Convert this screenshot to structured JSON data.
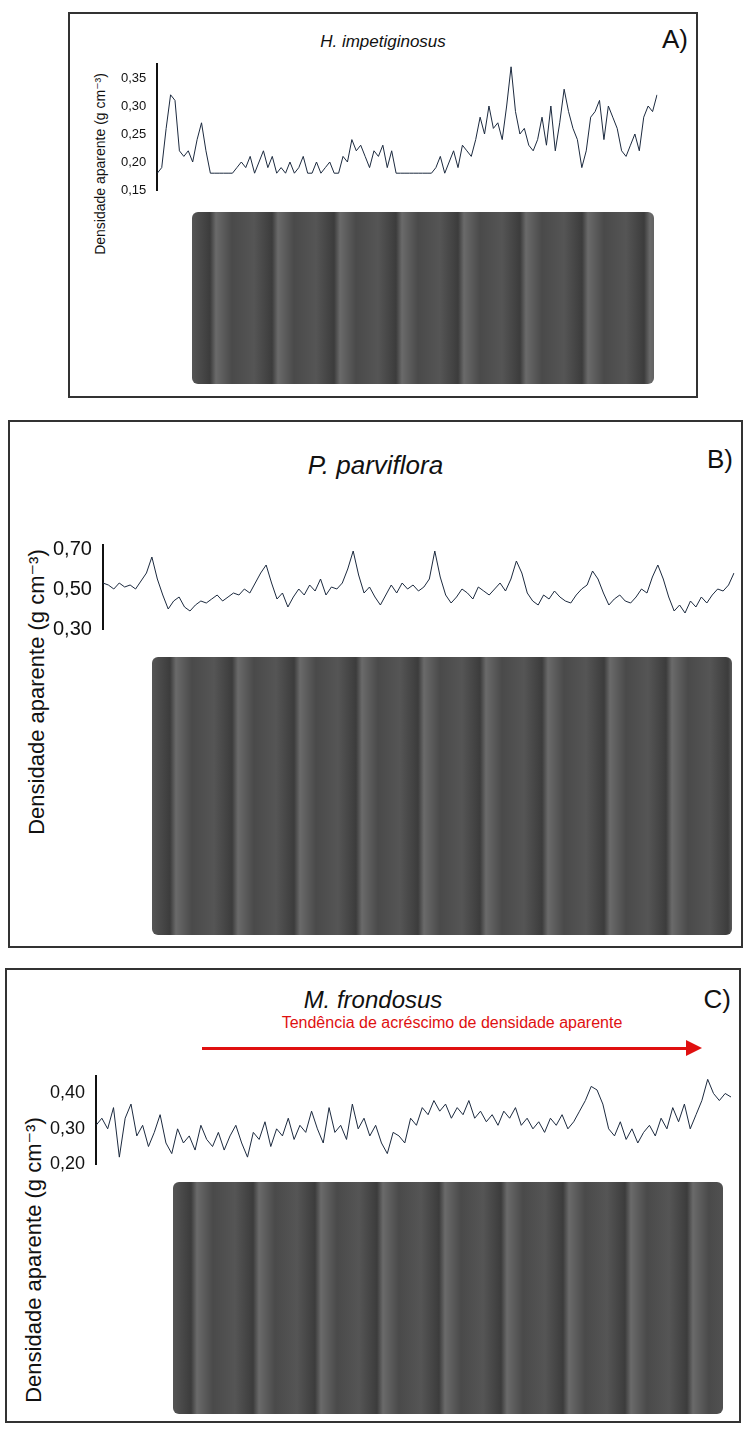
{
  "chart_data": [
    {
      "type": "line",
      "panel_label": "A)",
      "title": "H. impetiginosus",
      "ylabel": "Densidade aparente (g cm⁻³)",
      "color": "#1c2a3f",
      "line_style": "solid",
      "grid": false,
      "tick_labels": "y",
      "ylim": [
        0.15,
        0.375
      ],
      "yticks": [
        {
          "value": 0.15,
          "label": "0,15"
        },
        {
          "value": 0.2,
          "label": "0,20"
        },
        {
          "value": 0.25,
          "label": "0,25"
        },
        {
          "value": 0.3,
          "label": "0,30"
        },
        {
          "value": 0.35,
          "label": "0,35"
        }
      ],
      "values": [
        0.18,
        0.19,
        0.26,
        0.32,
        0.31,
        0.22,
        0.21,
        0.22,
        0.2,
        0.24,
        0.27,
        0.22,
        0.18,
        0.18,
        0.18,
        0.18,
        0.18,
        0.18,
        0.19,
        0.2,
        0.19,
        0.21,
        0.18,
        0.2,
        0.22,
        0.19,
        0.21,
        0.18,
        0.19,
        0.18,
        0.2,
        0.18,
        0.19,
        0.21,
        0.18,
        0.18,
        0.2,
        0.18,
        0.19,
        0.2,
        0.18,
        0.18,
        0.21,
        0.2,
        0.24,
        0.22,
        0.23,
        0.21,
        0.19,
        0.22,
        0.21,
        0.23,
        0.19,
        0.22,
        0.18,
        0.18,
        0.18,
        0.18,
        0.18,
        0.18,
        0.18,
        0.18,
        0.18,
        0.19,
        0.21,
        0.18,
        0.2,
        0.22,
        0.19,
        0.23,
        0.22,
        0.21,
        0.24,
        0.28,
        0.25,
        0.3,
        0.26,
        0.27,
        0.24,
        0.3,
        0.37,
        0.29,
        0.25,
        0.26,
        0.23,
        0.22,
        0.24,
        0.28,
        0.23,
        0.3,
        0.22,
        0.27,
        0.33,
        0.29,
        0.26,
        0.24,
        0.19,
        0.22,
        0.28,
        0.29,
        0.31,
        0.24,
        0.3,
        0.28,
        0.26,
        0.22,
        0.21,
        0.23,
        0.25,
        0.22,
        0.28,
        0.3,
        0.29,
        0.32
      ]
    },
    {
      "type": "line",
      "panel_label": "B)",
      "title": "P. parviflora",
      "ylabel": "Densidade aparente (g cm⁻³)",
      "color": "#1c2a3f",
      "line_style": "solid",
      "grid": false,
      "tick_labels": "y",
      "ylim": [
        0.3,
        0.72
      ],
      "yticks": [
        {
          "value": 0.3,
          "label": "0,30"
        },
        {
          "value": 0.5,
          "label": "0,50"
        },
        {
          "value": 0.7,
          "label": "0,70"
        }
      ],
      "values": [
        0.53,
        0.52,
        0.5,
        0.53,
        0.51,
        0.52,
        0.5,
        0.54,
        0.58,
        0.66,
        0.55,
        0.47,
        0.4,
        0.44,
        0.46,
        0.41,
        0.39,
        0.42,
        0.44,
        0.43,
        0.45,
        0.47,
        0.44,
        0.46,
        0.48,
        0.47,
        0.5,
        0.48,
        0.53,
        0.58,
        0.62,
        0.53,
        0.45,
        0.48,
        0.41,
        0.46,
        0.5,
        0.47,
        0.52,
        0.49,
        0.55,
        0.47,
        0.51,
        0.5,
        0.53,
        0.6,
        0.69,
        0.57,
        0.48,
        0.51,
        0.46,
        0.42,
        0.47,
        0.52,
        0.48,
        0.53,
        0.5,
        0.52,
        0.49,
        0.51,
        0.55,
        0.69,
        0.56,
        0.47,
        0.43,
        0.46,
        0.5,
        0.48,
        0.45,
        0.51,
        0.49,
        0.47,
        0.5,
        0.53,
        0.49,
        0.55,
        0.64,
        0.58,
        0.48,
        0.44,
        0.42,
        0.47,
        0.45,
        0.49,
        0.46,
        0.44,
        0.43,
        0.47,
        0.5,
        0.52,
        0.59,
        0.55,
        0.48,
        0.42,
        0.45,
        0.47,
        0.44,
        0.43,
        0.46,
        0.5,
        0.48,
        0.56,
        0.62,
        0.55,
        0.46,
        0.39,
        0.42,
        0.38,
        0.44,
        0.41,
        0.46,
        0.43,
        0.47,
        0.5,
        0.49,
        0.52,
        0.58
      ]
    },
    {
      "type": "line",
      "panel_label": "C)",
      "title": "M. frondosus",
      "ylabel": "Densidade aparente (g cm⁻³)",
      "color": "#1c2a3f",
      "line_style": "solid",
      "grid": false,
      "tick_labels": "y",
      "annotation": "Tendência de acréscimo de densidade aparente",
      "ylim": [
        0.2,
        0.45
      ],
      "yticks": [
        {
          "value": 0.2,
          "label": "0,20"
        },
        {
          "value": 0.3,
          "label": "0,30"
        },
        {
          "value": 0.4,
          "label": "0,40"
        }
      ],
      "values": [
        0.31,
        0.33,
        0.3,
        0.36,
        0.22,
        0.33,
        0.37,
        0.28,
        0.31,
        0.25,
        0.29,
        0.34,
        0.26,
        0.23,
        0.3,
        0.26,
        0.28,
        0.24,
        0.31,
        0.27,
        0.25,
        0.29,
        0.24,
        0.28,
        0.31,
        0.26,
        0.22,
        0.29,
        0.27,
        0.32,
        0.25,
        0.3,
        0.28,
        0.33,
        0.27,
        0.31,
        0.29,
        0.35,
        0.3,
        0.26,
        0.36,
        0.29,
        0.31,
        0.27,
        0.37,
        0.3,
        0.33,
        0.28,
        0.31,
        0.26,
        0.23,
        0.29,
        0.28,
        0.26,
        0.33,
        0.31,
        0.36,
        0.34,
        0.38,
        0.35,
        0.37,
        0.33,
        0.36,
        0.34,
        0.38,
        0.33,
        0.35,
        0.32,
        0.34,
        0.31,
        0.35,
        0.33,
        0.36,
        0.31,
        0.33,
        0.3,
        0.32,
        0.29,
        0.33,
        0.31,
        0.34,
        0.3,
        0.32,
        0.35,
        0.38,
        0.42,
        0.41,
        0.37,
        0.3,
        0.28,
        0.32,
        0.27,
        0.3,
        0.26,
        0.29,
        0.31,
        0.28,
        0.33,
        0.3,
        0.36,
        0.32,
        0.37,
        0.3,
        0.34,
        0.38,
        0.44,
        0.4,
        0.38,
        0.4,
        0.39
      ]
    }
  ]
}
